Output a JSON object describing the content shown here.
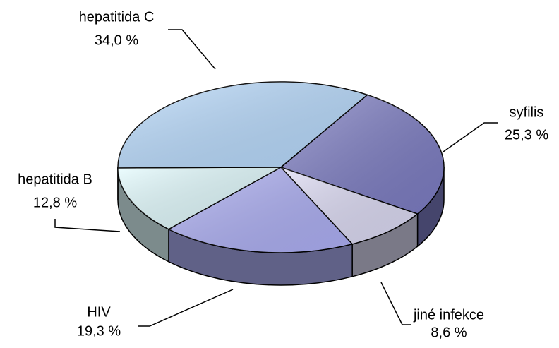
{
  "chart_data": {
    "type": "pie",
    "categories": [
      "syfilis",
      "jiné infekce",
      "HIV",
      "hepatitida B",
      "hepatitida C"
    ],
    "values": [
      25.3,
      8.6,
      19.3,
      12.8,
      34.0
    ],
    "value_labels": [
      "25,3 %",
      "8,6 %",
      "19,3 %",
      "12,8 %",
      "34,0 %"
    ],
    "colors": [
      "#7d7dc4",
      "#dedcf6",
      "#aeb0f6",
      "#e2fcff",
      "#b9dcff"
    ]
  }
}
